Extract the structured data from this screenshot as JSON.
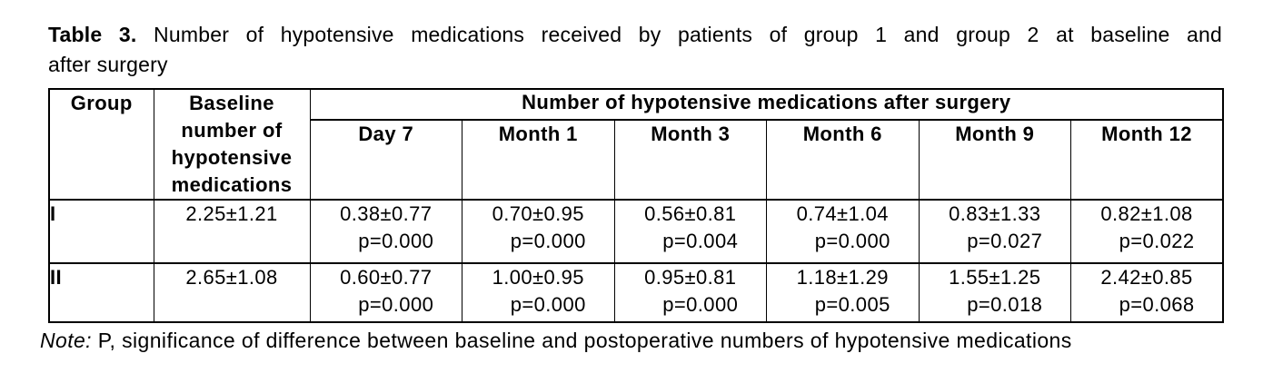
{
  "page": {
    "background": "#ffffff",
    "text_color": "#000000"
  },
  "title": {
    "prefix": "Table 3.",
    "line1": "Number of hypotensive medications received by patients of group 1 and group 2 at baseline and",
    "line2": "after surgery"
  },
  "table": {
    "corner_header": "Group",
    "baseline_header": "Baseline number of hypotensive medications",
    "span_header": "Number of hypotensive medications after surgery",
    "timepoints": [
      "Day 7",
      "Month 1",
      "Month 3",
      "Month 6",
      "Month 9",
      "Month 12"
    ],
    "rows": [
      {
        "group": "I",
        "baseline": "2.25±1.21",
        "cells": [
          {
            "value": "0.38±0.77",
            "p": "p=0.000"
          },
          {
            "value": "0.70±0.95",
            "p": "p=0.000"
          },
          {
            "value": "0.56±0.81",
            "p": "p=0.004"
          },
          {
            "value": "0.74±1.04",
            "p": "p=0.000"
          },
          {
            "value": "0.83±1.33",
            "p": "p=0.027"
          },
          {
            "value": "0.82±1.08",
            "p": "p=0.022"
          }
        ]
      },
      {
        "group": "II",
        "baseline": "2.65±1.08",
        "cells": [
          {
            "value": "0.60±0.77",
            "p": "p=0.000"
          },
          {
            "value": "1.00±0.95",
            "p": "p=0.000"
          },
          {
            "value": "0.95±0.81",
            "p": "p=0.000"
          },
          {
            "value": "1.18±1.29",
            "p": "p=0.005"
          },
          {
            "value": "1.55±1.25",
            "p": "p=0.018"
          },
          {
            "value": "2.42±0.85",
            "p": "p=0.068"
          }
        ]
      }
    ]
  },
  "note": {
    "label": "Note:",
    "text": "P, significance of difference between baseline and postoperative numbers of hypotensive medications"
  }
}
